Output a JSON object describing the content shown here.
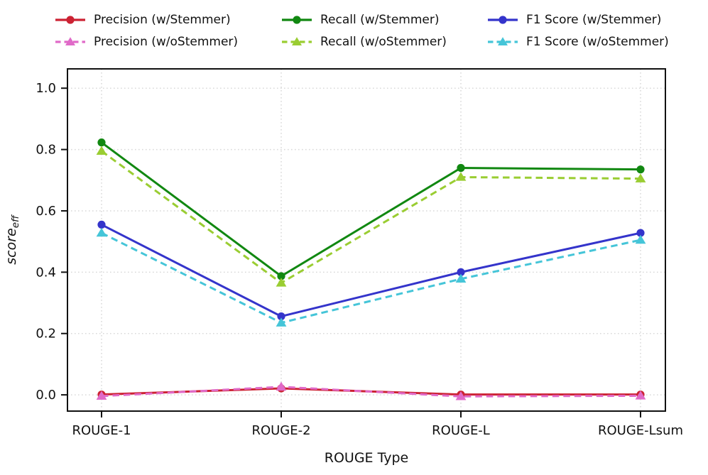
{
  "figure": {
    "background": "#ffffff"
  },
  "legend": {
    "position": "top",
    "items": [
      {
        "label": "Precision (w/Stemmer)",
        "color": "#CC2233",
        "line": "solid",
        "marker": "circle",
        "marker_name": "circle-marker-icon"
      },
      {
        "label": "Precision (w/oStemmer)",
        "color": "#E06AC8",
        "line": "dashed",
        "marker": "triangle",
        "marker_name": "triangle-marker-icon"
      },
      {
        "label": "Recall (w/Stemmer)",
        "color": "#118811",
        "line": "solid",
        "marker": "circle",
        "marker_name": "circle-marker-icon"
      },
      {
        "label": "Recall (w/oStemmer)",
        "color": "#9ACD32",
        "line": "dashed",
        "marker": "triangle",
        "marker_name": "triangle-marker-icon"
      },
      {
        "label": "F1 Score (w/Stemmer)",
        "color": "#3434CB",
        "line": "solid",
        "marker": "circle",
        "marker_name": "circle-marker-icon"
      },
      {
        "label": "F1 Score (w/oStemmer)",
        "color": "#45C5D8",
        "line": "dashed",
        "marker": "triangle",
        "marker_name": "triangle-marker-icon"
      }
    ]
  },
  "chart_data": {
    "type": "line",
    "title": "",
    "xlabel": "ROUGE Type",
    "ylabel": "score_eff",
    "ylabel_base": "score",
    "ylabel_subscript": "eff",
    "categories": [
      "ROUGE-1",
      "ROUGE-2",
      "ROUGE-L",
      "ROUGE-Lsum"
    ],
    "yticks": [
      "0.0",
      "0.2",
      "0.4",
      "0.6",
      "0.8",
      "1.0"
    ],
    "ytick_values": [
      0.0,
      0.2,
      0.4,
      0.6,
      0.8,
      1.0
    ],
    "ylim": [
      -0.053,
      1.063
    ],
    "grid": "dotted",
    "grid_color": "#d9d9d9",
    "legend_position": "top",
    "series": [
      {
        "name": "Precision (w/Stemmer)",
        "color": "#CC2233",
        "style": "solid",
        "marker": "circle",
        "values": [
          0.001,
          0.021,
          0.001,
          0.001
        ]
      },
      {
        "name": "Precision (w/oStemmer)",
        "color": "#E06AC8",
        "style": "dashed",
        "marker": "triangle",
        "values": [
          -0.004,
          0.026,
          -0.005,
          -0.003
        ]
      },
      {
        "name": "Recall (w/Stemmer)",
        "color": "#118811",
        "style": "solid",
        "marker": "circle",
        "values": [
          0.823,
          0.387,
          0.74,
          0.735
        ]
      },
      {
        "name": "Recall (w/oStemmer)",
        "color": "#9ACD32",
        "style": "dashed",
        "marker": "triangle",
        "values": [
          0.795,
          0.365,
          0.71,
          0.705
        ]
      },
      {
        "name": "F1 Score (w/Stemmer)",
        "color": "#3434CB",
        "style": "solid",
        "marker": "circle",
        "values": [
          0.555,
          0.256,
          0.4,
          0.528
        ]
      },
      {
        "name": "F1 Score (w/oStemmer)",
        "color": "#45C5D8",
        "style": "dashed",
        "marker": "triangle",
        "values": [
          0.528,
          0.235,
          0.378,
          0.505
        ]
      }
    ]
  }
}
